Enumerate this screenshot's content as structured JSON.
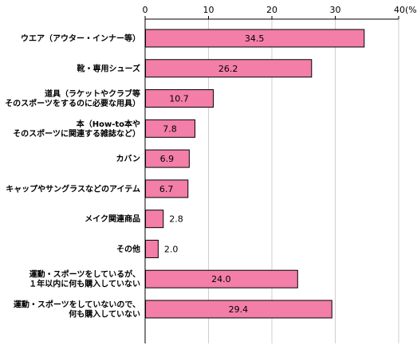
{
  "chart_data": {
    "type": "bar",
    "orientation": "horizontal",
    "unit_label": "(%)",
    "xlim": [
      0,
      40
    ],
    "xticks": [
      0,
      10,
      20,
      30,
      40
    ],
    "grid": true,
    "bar_color": "#f37ea8",
    "bar_border_color": "#000000",
    "categories": [
      [
        "ウエア（アウター・インナー等）"
      ],
      [
        "靴・専用シューズ"
      ],
      [
        "道具（ラケットやクラブ等",
        "そのスポーツをするのに必要な用具）"
      ],
      [
        "本（How-to本や",
        "そのスポーツに関連する雑誌など）"
      ],
      [
        "カバン"
      ],
      [
        "キャップやサングラスなどのアイテム"
      ],
      [
        "メイク関連商品"
      ],
      [
        "その他"
      ],
      [
        "運動・スポーツをしているが、",
        "１年以内に何も購入していない"
      ],
      [
        "運動・スポーツをしていないので、",
        "何も購入していない"
      ]
    ],
    "values": [
      34.5,
      26.2,
      10.7,
      7.8,
      6.9,
      6.7,
      2.8,
      2.0,
      24.0,
      29.4
    ],
    "value_labels": [
      "34.5",
      "26.2",
      "10.7",
      "7.8",
      "6.9",
      "6.7",
      "2.8",
      "2.0",
      "24.0",
      "29.4"
    ]
  }
}
